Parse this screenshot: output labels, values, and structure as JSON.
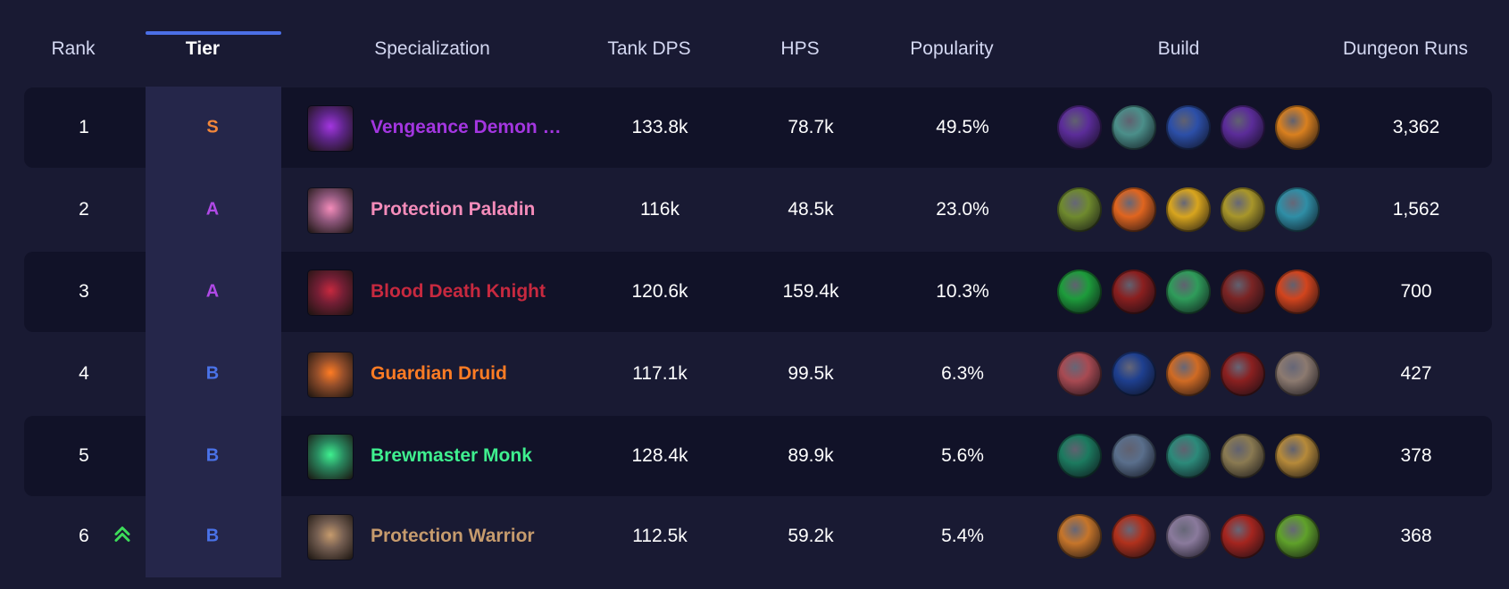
{
  "header": {
    "rank": "Rank",
    "tier": "Tier",
    "specialization": "Specialization",
    "tank_dps": "Tank DPS",
    "hps": "HPS",
    "popularity": "Popularity",
    "build": "Build",
    "dungeon_runs": "Dungeon Runs"
  },
  "rows": [
    {
      "rank": "1",
      "tier": "S",
      "tier_color": "#f2863a",
      "spec": "Vengeance Demon Hunter",
      "spec_display": "Vengeance Demon H...",
      "spec_color": "#a336e0",
      "spec_icon": "vengeance-demon-hunter-icon",
      "dps": "133.8k",
      "hps": "78.7k",
      "popularity": "49.5%",
      "runs": "3,362",
      "build": [
        "#5b2c99",
        "#4b8f8a",
        "#2c4fa8",
        "#5b2c99",
        "#d9801f"
      ]
    },
    {
      "rank": "2",
      "tier": "A",
      "tier_color": "#b049e6",
      "spec": "Protection Paladin",
      "spec_display": "Protection Paladin",
      "spec_color": "#f48cba",
      "spec_icon": "protection-paladin-icon",
      "dps": "116k",
      "hps": "48.5k",
      "popularity": "23.0%",
      "runs": "1,562",
      "build": [
        "#6f8a2e",
        "#e0651f",
        "#d8a51e",
        "#a8962a",
        "#2f8ea6"
      ]
    },
    {
      "rank": "3",
      "tier": "A",
      "tier_color": "#b049e6",
      "spec": "Blood Death Knight",
      "spec_display": "Blood Death Knight",
      "spec_color": "#c7293f",
      "spec_icon": "blood-death-knight-icon",
      "dps": "120.6k",
      "hps": "159.4k",
      "popularity": "10.3%",
      "runs": "700",
      "build": [
        "#1d9c3b",
        "#8a1f1f",
        "#2f9c5a",
        "#7a2424",
        "#d2441d"
      ]
    },
    {
      "rank": "4",
      "tier": "B",
      "tier_color": "#4a72e8",
      "spec": "Guardian Druid",
      "spec_display": "Guardian Druid",
      "spec_color": "#ff7c24",
      "spec_icon": "guardian-druid-icon",
      "dps": "117.1k",
      "hps": "99.5k",
      "popularity": "6.3%",
      "runs": "427",
      "build": [
        "#a84a52",
        "#1e3f8f",
        "#d06b24",
        "#8a2020",
        "#8c7a70"
      ]
    },
    {
      "rank": "5",
      "tier": "B",
      "tier_color": "#4a72e8",
      "spec": "Brewmaster Monk",
      "spec_display": "Brewmaster Monk",
      "spec_color": "#3ff08f",
      "spec_icon": "brewmaster-monk-icon",
      "dps": "128.4k",
      "hps": "89.9k",
      "popularity": "5.6%",
      "runs": "378",
      "build": [
        "#1c7a5f",
        "#5a6f8c",
        "#2c8a7a",
        "#8a7a52",
        "#b68a3a"
      ]
    },
    {
      "rank": "6",
      "tier": "B",
      "tier_color": "#4a72e8",
      "spec": "Protection Warrior",
      "spec_display": "Protection Warrior",
      "spec_color": "#c69b6d",
      "spec_icon": "protection-warrior-icon",
      "dps": "112.5k",
      "hps": "59.2k",
      "popularity": "5.4%",
      "runs": "368",
      "trend": "rank-up-icon",
      "build": [
        "#c6752a",
        "#b0311c",
        "#8a7a9c",
        "#a4251f",
        "#5fa12a"
      ]
    }
  ],
  "colors": {
    "background": "#191a33",
    "row_dark": "#111228",
    "tier_column": "#25264a",
    "active_tab": "#4b6fe6",
    "trend_up": "#3ddc5a"
  }
}
